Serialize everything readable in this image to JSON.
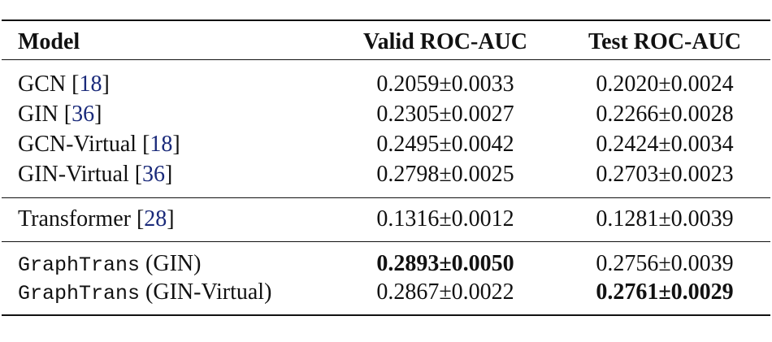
{
  "table": {
    "header": [
      "Model",
      "Valid ROC-AUC",
      "Test ROC-AUC"
    ],
    "groups": [
      {
        "rows": [
          {
            "model": {
              "text": "GCN",
              "open": "[",
              "ref": "18",
              "close": "]"
            },
            "valid": "0.2059±0.0033",
            "test": "0.2020±0.0024"
          },
          {
            "model": {
              "text": "GIN",
              "open": "[",
              "ref": "36",
              "close": "]"
            },
            "valid": "0.2305±0.0027",
            "test": "0.2266±0.0028"
          },
          {
            "model": {
              "text": "GCN-Virtual",
              "open": "[",
              "ref": "18",
              "close": "]"
            },
            "valid": "0.2495±0.0042",
            "test": "0.2424±0.0034"
          },
          {
            "model": {
              "text": "GIN-Virtual",
              "open": "[",
              "ref": "36",
              "close": "]"
            },
            "valid": "0.2798±0.0025",
            "test": "0.2703±0.0023"
          }
        ]
      },
      {
        "rows": [
          {
            "model": {
              "text": "Transformer",
              "open": "[",
              "ref": "28",
              "close": "]"
            },
            "valid": "0.1316±0.0012",
            "test": "0.1281±0.0039"
          }
        ]
      },
      {
        "rows": [
          {
            "model": {
              "code": "GraphTrans",
              "text": "(GIN)"
            },
            "valid": "0.2893±0.0050",
            "test": "0.2756±0.0039",
            "bold": "valid"
          },
          {
            "model": {
              "code": "GraphTrans",
              "text": "(GIN-Virtual)"
            },
            "valid": "0.2867±0.0022",
            "test": "0.2761±0.0029",
            "bold": "test"
          }
        ]
      }
    ]
  }
}
